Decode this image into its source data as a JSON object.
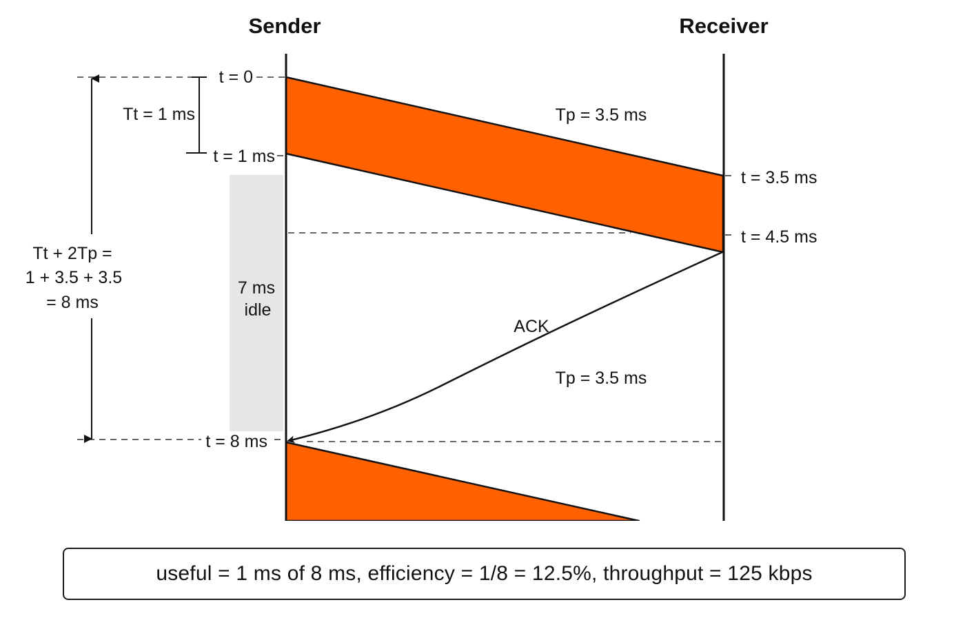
{
  "headers": {
    "sender": "Sender",
    "receiver": "Receiver"
  },
  "sender_marks": {
    "t0": "t = 0",
    "t1": "t = 1 ms",
    "t8": "t = 8 ms"
  },
  "receiver_marks": {
    "t35": "t = 3.5 ms",
    "t45": "t = 4.5 ms"
  },
  "tt_label": "Tt = 1 ms",
  "tp_top": "Tp = 3.5 ms",
  "tp_bottom": "Tp = 3.5 ms",
  "ack_label": "ACK",
  "idle": {
    "line1": "7 ms",
    "line2": "idle"
  },
  "total": {
    "line1": "Tt + 2Tp =",
    "line2": "1 + 3.5 + 3.5",
    "line3": "= 8 ms"
  },
  "summary": "useful = 1 ms of 8 ms, efficiency = 1/8 = 12.5%, throughput = 125 kbps",
  "colors": {
    "frame": "#ff6000",
    "idle": "#e6e6e8",
    "line": "#111111"
  }
}
